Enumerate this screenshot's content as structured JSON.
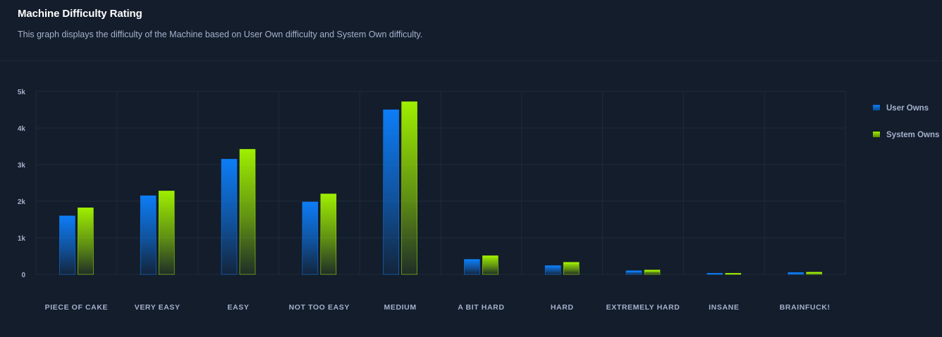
{
  "header": {
    "title": "Machine Difficulty Rating",
    "subtitle": "This graph displays the difficulty of the Machine based on User Own difficulty and System Own difficulty."
  },
  "colors": {
    "user": "#0d7df7",
    "system": "#9fef00",
    "grid": "#1e2a3b",
    "tick_text": "#a4b1cd",
    "background": "#141d2b"
  },
  "chart_data": {
    "type": "bar",
    "categories": [
      "PIECE OF CAKE",
      "VERY EASY",
      "EASY",
      "NOT TOO EASY",
      "MEDIUM",
      "A BIT HARD",
      "HARD",
      "EXTREMELY HARD",
      "INSANE",
      "BRAINFUCK!"
    ],
    "series": [
      {
        "name": "User Owns",
        "color": "#0d7df7",
        "values": [
          1600,
          2150,
          3150,
          1980,
          4500,
          410,
          240,
          100,
          30,
          50
        ]
      },
      {
        "name": "System Owns",
        "color": "#9fef00",
        "values": [
          1820,
          2280,
          3420,
          2200,
          4720,
          510,
          330,
          120,
          30,
          60
        ]
      }
    ],
    "yticks": [
      "0",
      "1k",
      "2k",
      "3k",
      "4k",
      "5k"
    ],
    "ylim": [
      0,
      5000
    ],
    "grid": true,
    "legend_position": "right"
  }
}
